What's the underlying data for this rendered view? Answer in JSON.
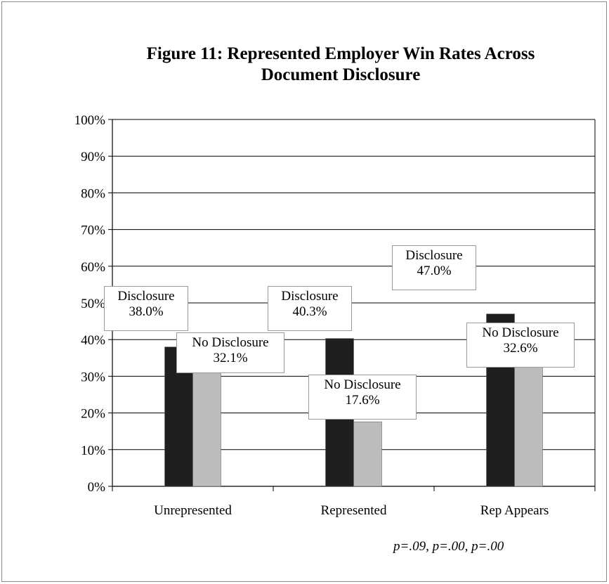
{
  "chart_data": {
    "type": "bar",
    "title": "Figure 11: Represented Employer Win Rates Across Document Disclosure",
    "title_lines": [
      "Figure 11: Represented Employer Win Rates Across",
      "Document Disclosure"
    ],
    "categories": [
      "Unrepresented",
      "Represented",
      "Rep Appears"
    ],
    "series": [
      {
        "name": "Disclosure",
        "values": [
          38.0,
          40.3,
          47.0
        ],
        "labels": [
          "38.0%",
          "40.3%",
          "47.0%"
        ]
      },
      {
        "name": "No Disclosure",
        "values": [
          32.1,
          17.6,
          32.6
        ],
        "labels": [
          "32.1%",
          "17.6%",
          "32.6%"
        ]
      }
    ],
    "ylim": [
      0,
      100
    ],
    "yticks": [
      "0%",
      "10%",
      "20%",
      "30%",
      "40%",
      "50%",
      "60%",
      "70%",
      "80%",
      "90%",
      "100%"
    ],
    "xlabel": "",
    "ylabel": "",
    "grid": true,
    "legend": "none",
    "annotation": "p=.09, p=.00, p=.00",
    "colors": {
      "Disclosure": "#1e1e1e",
      "No Disclosure": "#bdbdbd",
      "grid": "#000000"
    }
  }
}
